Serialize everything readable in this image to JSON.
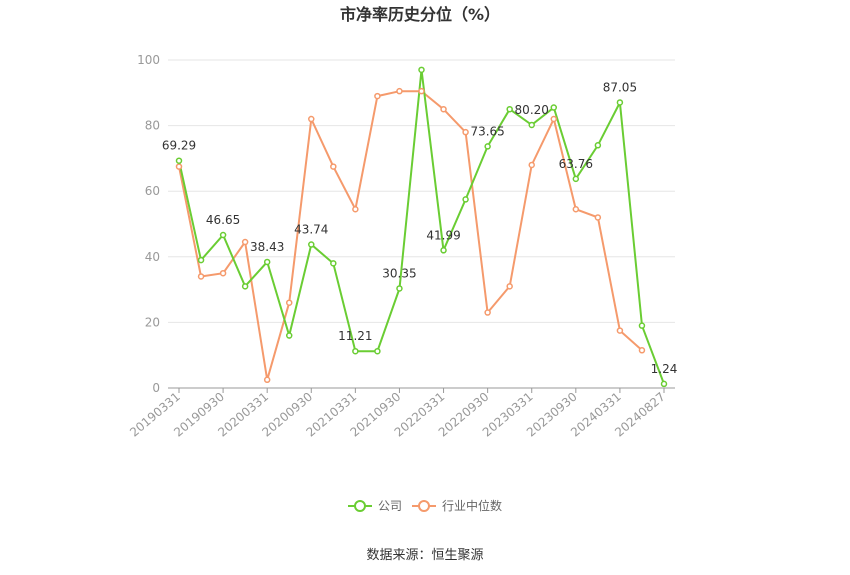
{
  "chart_data": {
    "type": "line",
    "title": "市净率历史分位（%）",
    "ylim": [
      0,
      100
    ],
    "yticks": [
      0,
      20,
      40,
      60,
      80,
      100
    ],
    "x": [
      "20190331",
      "20190630",
      "20190930",
      "20191231",
      "20200331",
      "20200630",
      "20200930",
      "20201231",
      "20210331",
      "20210630",
      "20210930",
      "20211231",
      "20220331",
      "20220630",
      "20220930",
      "20221231",
      "20230331",
      "20230630",
      "20230930",
      "20231231",
      "20240331",
      "20240630",
      "20240827"
    ],
    "xtick_labels": [
      "20190331",
      "20190930",
      "20200331",
      "20200930",
      "20210331",
      "20210930",
      "20220331",
      "20220930",
      "20230331",
      "20230930",
      "20240331",
      "20240827"
    ],
    "series": [
      {
        "name": "公司",
        "color": "#6acd33",
        "values": [
          69.29,
          39.0,
          46.65,
          31.0,
          38.43,
          16.0,
          43.74,
          38.0,
          11.21,
          11.21,
          30.35,
          97.0,
          41.99,
          57.5,
          73.65,
          85.0,
          80.2,
          85.5,
          63.76,
          74.0,
          87.05,
          19.0,
          1.24
        ]
      },
      {
        "name": "行业中位数",
        "color": "#f59a6c",
        "values": [
          67.5,
          34.0,
          35.0,
          44.5,
          2.5,
          26.0,
          82.0,
          67.5,
          54.5,
          89.0,
          90.5,
          90.5,
          85.0,
          78.0,
          23.0,
          31.0,
          68.0,
          82.0,
          54.5,
          52.0,
          17.5,
          11.5,
          null
        ]
      }
    ],
    "data_labels": [
      {
        "index": 0,
        "text": "69.29"
      },
      {
        "index": 2,
        "text": "46.65"
      },
      {
        "index": 4,
        "text": "38.43"
      },
      {
        "index": 6,
        "text": "43.74"
      },
      {
        "index": 8,
        "text": "11.21"
      },
      {
        "index": 10,
        "text": "30.35"
      },
      {
        "index": 12,
        "text": "41.99"
      },
      {
        "index": 14,
        "text": "73.65"
      },
      {
        "index": 16,
        "text": "80.20"
      },
      {
        "index": 18,
        "text": "63.76"
      },
      {
        "index": 20,
        "text": "87.05"
      },
      {
        "index": 22,
        "text": "1.24"
      }
    ],
    "legend_position": "bottom-center",
    "grid": true
  },
  "source_text": "数据来源：恒生聚源"
}
